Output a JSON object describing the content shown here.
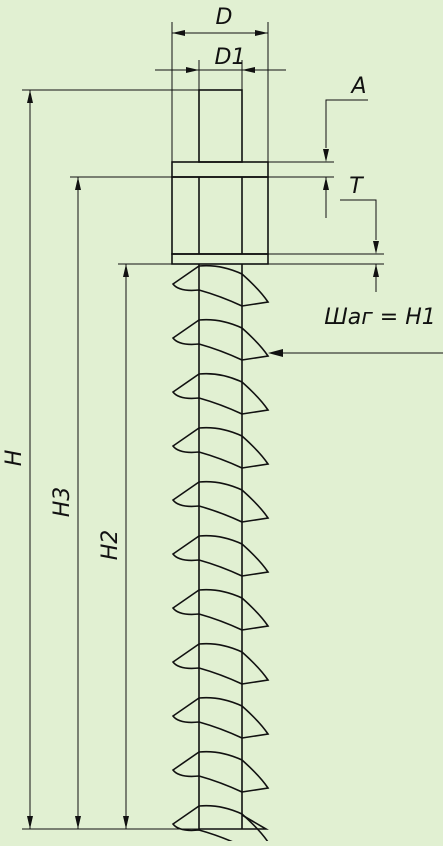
{
  "drawing": {
    "background_color": "#e1f0d2",
    "line_color": "#111111",
    "labels": {
      "D": "D",
      "D1": "D1",
      "A": "A",
      "T": "T",
      "pitch": "Шаг = H1",
      "H": "H",
      "H3": "H3",
      "H2": "H2"
    },
    "auger_turns": 11
  }
}
